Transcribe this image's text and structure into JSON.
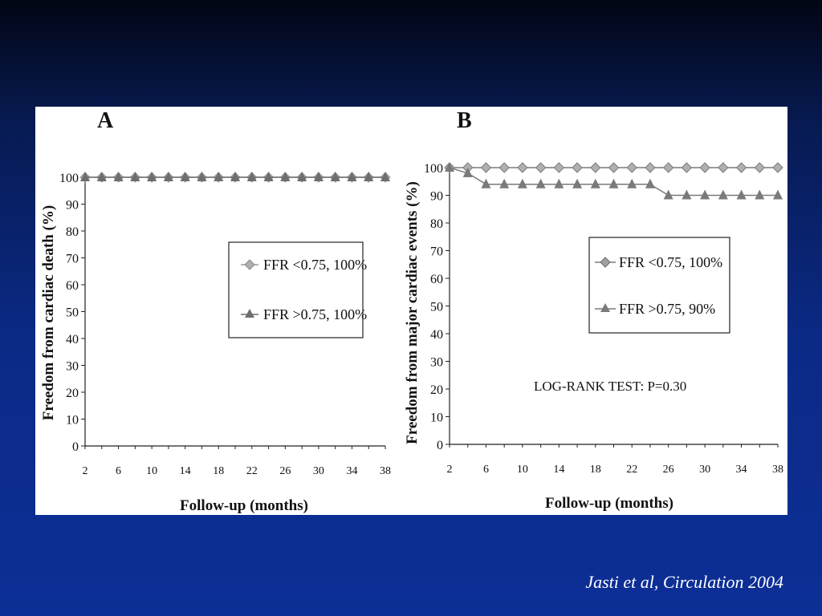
{
  "citation": "Jasti et al, Circulation 2004",
  "chart_data": [
    {
      "type": "line",
      "panel_label": "A",
      "xlabel": "Follow-up (months)",
      "ylabel": "Freedom from cardiac death  (%)",
      "xlim": [
        2,
        38
      ],
      "ylim": [
        0,
        100
      ],
      "yticks": [
        0,
        10,
        20,
        30,
        40,
        50,
        60,
        70,
        80,
        90,
        100
      ],
      "xticks": [
        2,
        6,
        10,
        14,
        18,
        22,
        26,
        30,
        34,
        38
      ],
      "x": [
        2,
        4,
        6,
        8,
        10,
        12,
        14,
        16,
        18,
        20,
        22,
        24,
        26,
        28,
        30,
        32,
        34,
        36,
        38
      ],
      "series": [
        {
          "name": "FFR <0.75, 100%",
          "marker": "diamond",
          "color": "#9a9a9a",
          "values": [
            100,
            100,
            100,
            100,
            100,
            100,
            100,
            100,
            100,
            100,
            100,
            100,
            100,
            100,
            100,
            100,
            100,
            100,
            100
          ]
        },
        {
          "name": "FFR >0.75, 100%",
          "marker": "triangle",
          "color": "#6e6e6e",
          "values": [
            100,
            100,
            100,
            100,
            100,
            100,
            100,
            100,
            100,
            100,
            100,
            100,
            100,
            100,
            100,
            100,
            100,
            100,
            100
          ]
        }
      ],
      "legend": "right-middle"
    },
    {
      "type": "line",
      "panel_label": "B",
      "xlabel": "Follow-up (months)",
      "ylabel": "Freedom from major cardiac events (%)",
      "xlim": [
        2,
        38
      ],
      "ylim": [
        0,
        100
      ],
      "yticks": [
        0,
        10,
        20,
        30,
        40,
        50,
        60,
        70,
        80,
        90,
        100
      ],
      "xticks": [
        2,
        6,
        10,
        14,
        18,
        22,
        26,
        30,
        34,
        38
      ],
      "x": [
        2,
        4,
        6,
        8,
        10,
        12,
        14,
        16,
        18,
        20,
        22,
        24,
        26,
        28,
        30,
        32,
        34,
        36,
        38
      ],
      "series": [
        {
          "name": "FFR <0.75, 100%",
          "marker": "diamond",
          "color": "#7a7a7a",
          "values": [
            100,
            100,
            100,
            100,
            100,
            100,
            100,
            100,
            100,
            100,
            100,
            100,
            100,
            100,
            100,
            100,
            100,
            100,
            100
          ]
        },
        {
          "name": "FFR >0.75, 90%",
          "marker": "triangle",
          "color": "#7a7a7a",
          "values": [
            100,
            98,
            94,
            94,
            94,
            94,
            94,
            94,
            94,
            94,
            94,
            94,
            90,
            90,
            90,
            90,
            90,
            90,
            90
          ]
        }
      ],
      "annotation": "LOG-RANK TEST: P=0.30",
      "legend": "right-middle"
    }
  ]
}
